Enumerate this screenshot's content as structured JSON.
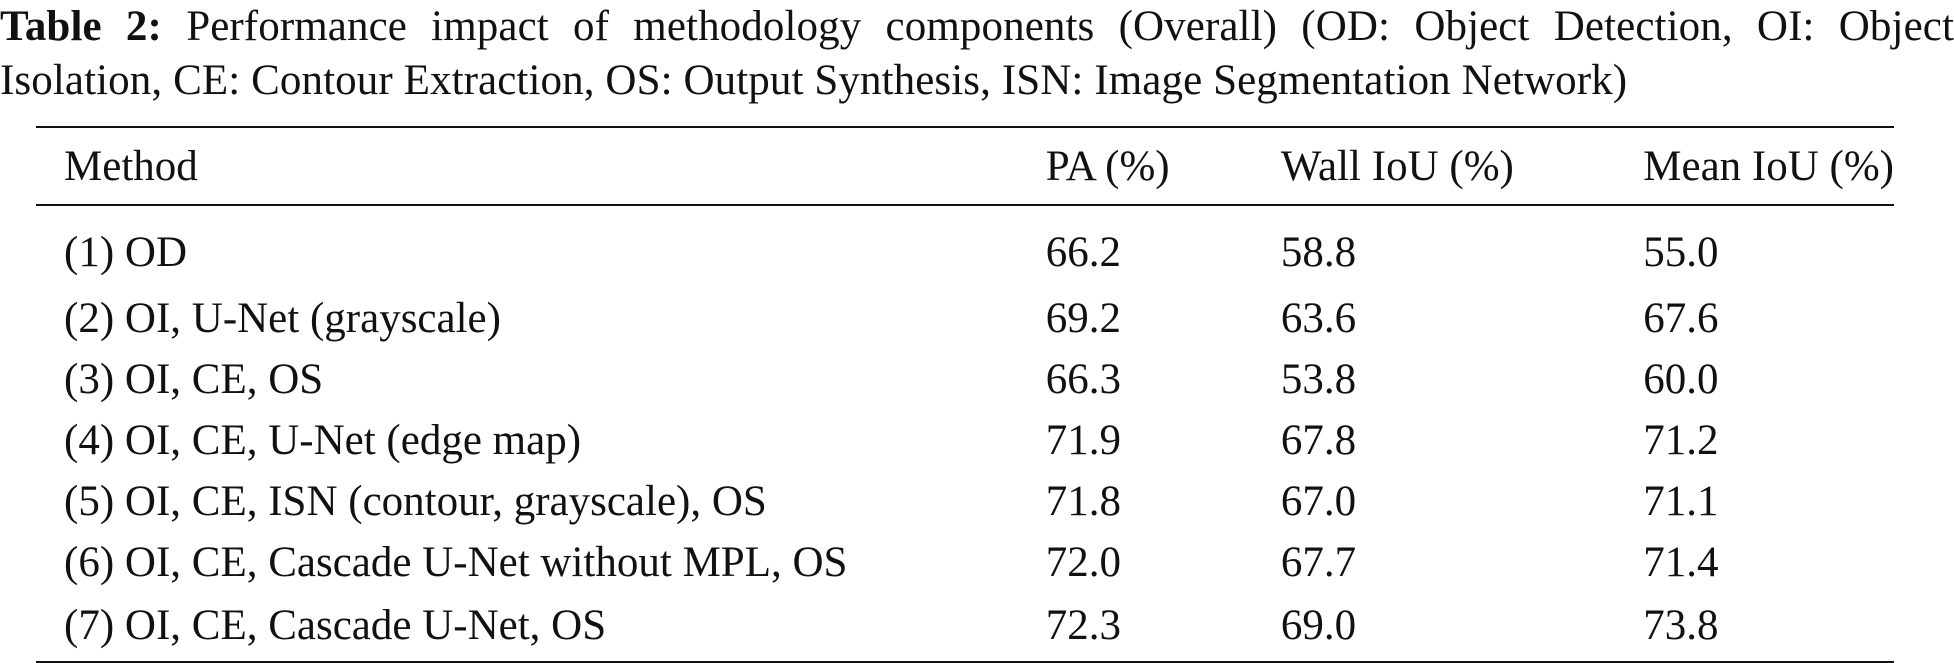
{
  "caption": {
    "label": "Table 2:",
    "text": "Performance impact of methodology components (Overall) (OD: Object Detection, OI: Object Isolation, CE: Contour Extraction, OS: Output Synthesis, ISN: Image Segmentation Network)"
  },
  "table": {
    "headers": {
      "method": "Method",
      "pa": "PA (%)",
      "wall_iou": "Wall IoU (%)",
      "mean_iou": "Mean IoU (%)"
    },
    "rows": [
      {
        "method": "(1) OD",
        "pa": "66.2",
        "wall_iou": "58.8",
        "mean_iou": "55.0"
      },
      {
        "method": "(2) OI, U-Net (grayscale)",
        "pa": "69.2",
        "wall_iou": "63.6",
        "mean_iou": "67.6"
      },
      {
        "method": "(3) OI, CE, OS",
        "pa": "66.3",
        "wall_iou": "53.8",
        "mean_iou": "60.0"
      },
      {
        "method": "(4) OI, CE, U-Net (edge map)",
        "pa": "71.9",
        "wall_iou": "67.8",
        "mean_iou": "71.2"
      },
      {
        "method": "(5) OI, CE, ISN (contour, grayscale), OS",
        "pa": "71.8",
        "wall_iou": "67.0",
        "mean_iou": "71.1"
      },
      {
        "method": "(6) OI, CE, Cascade U-Net without MPL, OS",
        "pa": "72.0",
        "wall_iou": "67.7",
        "mean_iou": "71.4"
      },
      {
        "method": "(7) OI, CE, Cascade U-Net, OS",
        "pa": "72.3",
        "wall_iou": "69.0",
        "mean_iou": "73.8"
      }
    ]
  }
}
